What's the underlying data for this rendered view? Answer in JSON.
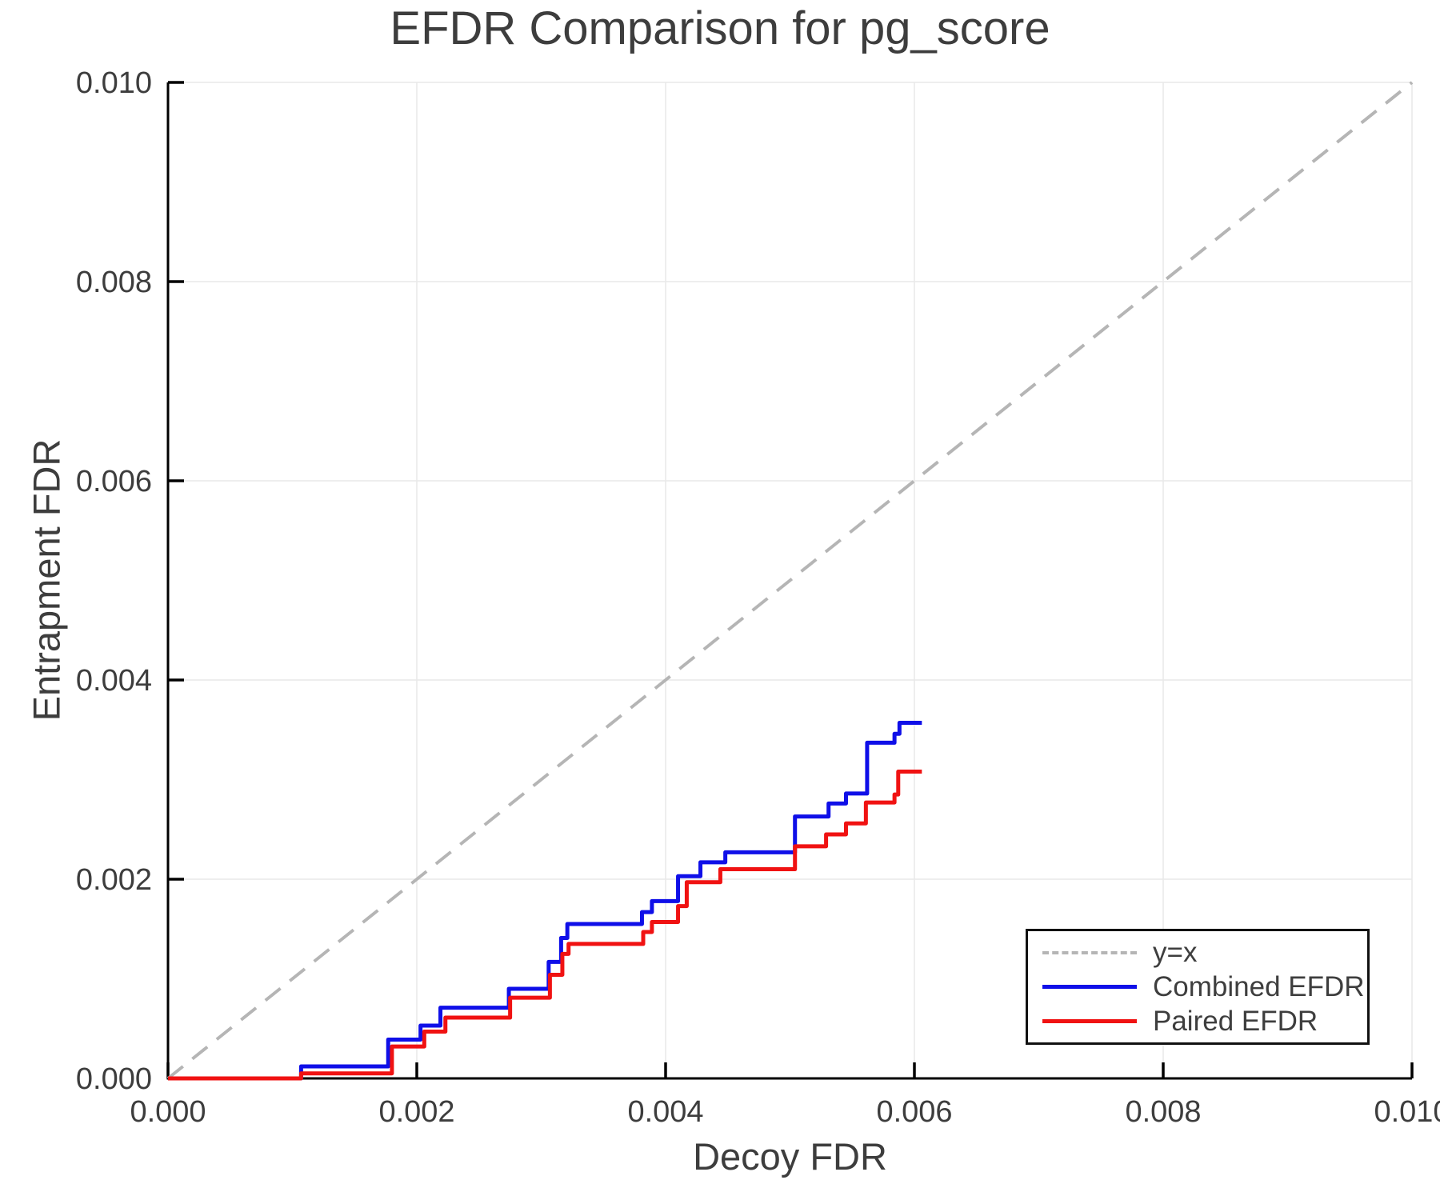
{
  "title": "EFDR Comparison for pg_score",
  "x_axis": {
    "label": "Decoy FDR",
    "tick_labels": [
      "0.000",
      "0.002",
      "0.004",
      "0.006",
      "0.008",
      "0.010"
    ],
    "tick_values": [
      0,
      0.002,
      0.004,
      0.006,
      0.008,
      0.01
    ]
  },
  "y_axis": {
    "label": "Entrapment FDR",
    "tick_labels": [
      "0.000",
      "0.002",
      "0.004",
      "0.006",
      "0.008",
      "0.010"
    ],
    "tick_values": [
      0,
      0.002,
      0.004,
      0.006,
      0.008,
      0.01
    ]
  },
  "legend": {
    "entries": [
      {
        "label": "y=x",
        "color": "#b5b5b5",
        "style": "dashed"
      },
      {
        "label": "Combined EFDR",
        "color": "#0f0fe8",
        "style": "solid"
      },
      {
        "label": "Paired EFDR",
        "color": "#f01212",
        "style": "solid"
      }
    ]
  },
  "colors": {
    "text": "#3d3d3d",
    "grid": "#e9e9e9",
    "spine": "#000000",
    "diagonal": "#b5b5b5",
    "combined": "#0f0fe8",
    "paired": "#f01212",
    "background": "#ffffff"
  },
  "chart_data": {
    "type": "line",
    "title": "EFDR Comparison for pg_score",
    "xlabel": "Decoy FDR",
    "ylabel": "Entrapment FDR",
    "xlim": [
      0,
      0.01
    ],
    "ylim": [
      0,
      0.01
    ],
    "grid": true,
    "legend_position": "lower right",
    "series": [
      {
        "name": "y=x",
        "mode": "line",
        "dashed": true,
        "color": "#b5b5b5",
        "width": 4,
        "points": [
          [
            0,
            0
          ],
          [
            0.01,
            0.01
          ]
        ]
      },
      {
        "name": "Combined EFDR",
        "mode": "step",
        "dashed": false,
        "color": "#0f0fe8",
        "width": 5,
        "points": [
          [
            0.0,
            0.0
          ],
          [
            0.00107,
            0.00012
          ],
          [
            0.00177,
            0.00039
          ],
          [
            0.00203,
            0.00053
          ],
          [
            0.00219,
            0.00071
          ],
          [
            0.00274,
            0.0009
          ],
          [
            0.00306,
            0.00117
          ],
          [
            0.00316,
            0.00141
          ],
          [
            0.00321,
            0.00155
          ],
          [
            0.00381,
            0.00167
          ],
          [
            0.00389,
            0.00178
          ],
          [
            0.0041,
            0.00203
          ],
          [
            0.00428,
            0.00217
          ],
          [
            0.00448,
            0.00227
          ],
          [
            0.00504,
            0.00263
          ],
          [
            0.00531,
            0.00276
          ],
          [
            0.00545,
            0.00286
          ],
          [
            0.00562,
            0.00337
          ],
          [
            0.00584,
            0.00346
          ],
          [
            0.00588,
            0.00357
          ],
          [
            0.00606,
            0.00357
          ]
        ]
      },
      {
        "name": "Paired EFDR",
        "mode": "step",
        "dashed": false,
        "color": "#f01212",
        "width": 5,
        "points": [
          [
            0.0,
            0.0
          ],
          [
            0.00107,
            5e-05
          ],
          [
            0.0018,
            0.00032
          ],
          [
            0.00206,
            0.00047
          ],
          [
            0.00223,
            0.00061
          ],
          [
            0.00275,
            0.00081
          ],
          [
            0.00307,
            0.00104
          ],
          [
            0.00317,
            0.00125
          ],
          [
            0.00322,
            0.00135
          ],
          [
            0.00382,
            0.00147
          ],
          [
            0.00389,
            0.00157
          ],
          [
            0.0041,
            0.00173
          ],
          [
            0.00417,
            0.00197
          ],
          [
            0.00444,
            0.0021
          ],
          [
            0.00504,
            0.00233
          ],
          [
            0.00529,
            0.00245
          ],
          [
            0.00545,
            0.00256
          ],
          [
            0.00561,
            0.00277
          ],
          [
            0.00584,
            0.00285
          ],
          [
            0.00587,
            0.00308
          ],
          [
            0.00606,
            0.00308
          ]
        ]
      }
    ]
  }
}
